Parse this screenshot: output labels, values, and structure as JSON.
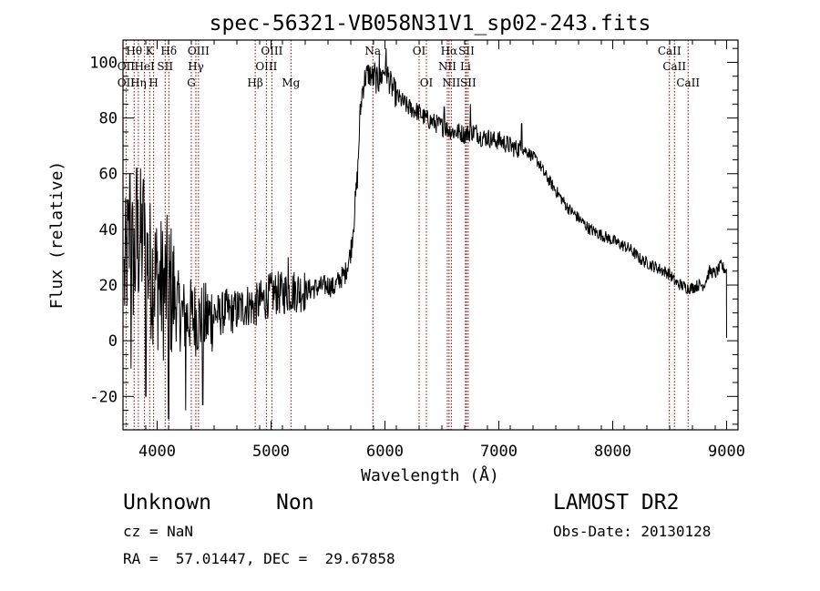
{
  "chart_data": {
    "type": "line",
    "title": "spec-56321-VB058N31V1_sp02-243.fits",
    "xlabel": "Wavelength (Å)",
    "ylabel": "Flux (relative)",
    "xlim": [
      3700,
      9100
    ],
    "ylim": [
      -32,
      108
    ],
    "x_ticks": [
      4000,
      5000,
      6000,
      7000,
      8000,
      9000
    ],
    "y_ticks": [
      -20,
      0,
      20,
      40,
      60,
      80,
      100
    ],
    "grid": false,
    "line_color": "#000000",
    "marker_line_color": "#8b0000",
    "spectrum_anchors": [
      [
        3700,
        18
      ],
      [
        3750,
        35
      ],
      [
        3800,
        28
      ],
      [
        3850,
        38
      ],
      [
        3900,
        30
      ],
      [
        3950,
        25
      ],
      [
        4000,
        22
      ],
      [
        4050,
        18
      ],
      [
        4100,
        20
      ],
      [
        4150,
        15
      ],
      [
        4200,
        10
      ],
      [
        4250,
        8
      ],
      [
        4300,
        9
      ],
      [
        4350,
        8
      ],
      [
        4400,
        7
      ],
      [
        4450,
        8
      ],
      [
        4500,
        10
      ],
      [
        4550,
        9
      ],
      [
        4600,
        11
      ],
      [
        4650,
        10
      ],
      [
        4700,
        11
      ],
      [
        4750,
        12
      ],
      [
        4800,
        13
      ],
      [
        4850,
        12
      ],
      [
        4900,
        14
      ],
      [
        4950,
        15
      ],
      [
        5000,
        17
      ],
      [
        5100,
        17
      ],
      [
        5200,
        18
      ],
      [
        5300,
        18
      ],
      [
        5400,
        19
      ],
      [
        5500,
        20
      ],
      [
        5550,
        19
      ],
      [
        5600,
        22
      ],
      [
        5650,
        24
      ],
      [
        5700,
        32
      ],
      [
        5730,
        45
      ],
      [
        5760,
        60
      ],
      [
        5780,
        80
      ],
      [
        5800,
        90
      ],
      [
        5830,
        95
      ],
      [
        5860,
        96
      ],
      [
        5900,
        94
      ],
      [
        5950,
        93
      ],
      [
        6000,
        98
      ],
      [
        6020,
        96
      ],
      [
        6050,
        92
      ],
      [
        6100,
        88
      ],
      [
        6150,
        86
      ],
      [
        6200,
        84
      ],
      [
        6250,
        83
      ],
      [
        6300,
        82
      ],
      [
        6350,
        80
      ],
      [
        6400,
        79
      ],
      [
        6450,
        78
      ],
      [
        6500,
        77
      ],
      [
        6550,
        76
      ],
      [
        6600,
        75
      ],
      [
        6650,
        75
      ],
      [
        6700,
        74
      ],
      [
        6750,
        75
      ],
      [
        6800,
        75
      ],
      [
        6850,
        73
      ],
      [
        6900,
        73
      ],
      [
        6950,
        72
      ],
      [
        7000,
        72
      ],
      [
        7050,
        71
      ],
      [
        7100,
        70
      ],
      [
        7150,
        69
      ],
      [
        7200,
        69
      ],
      [
        7250,
        68
      ],
      [
        7300,
        66
      ],
      [
        7350,
        64
      ],
      [
        7400,
        60
      ],
      [
        7450,
        57
      ],
      [
        7500,
        54
      ],
      [
        7550,
        51
      ],
      [
        7600,
        48
      ],
      [
        7650,
        46
      ],
      [
        7700,
        44
      ],
      [
        7750,
        42
      ],
      [
        7800,
        40
      ],
      [
        7850,
        39
      ],
      [
        7900,
        38
      ],
      [
        7950,
        37
      ],
      [
        8000,
        36
      ],
      [
        8050,
        35
      ],
      [
        8100,
        34
      ],
      [
        8150,
        33
      ],
      [
        8200,
        31
      ],
      [
        8250,
        29
      ],
      [
        8300,
        28
      ],
      [
        8350,
        27
      ],
      [
        8400,
        26
      ],
      [
        8450,
        25
      ],
      [
        8500,
        24
      ],
      [
        8550,
        21
      ],
      [
        8600,
        20
      ],
      [
        8650,
        19
      ],
      [
        8700,
        19
      ],
      [
        8750,
        20
      ],
      [
        8800,
        20
      ],
      [
        8850,
        25
      ],
      [
        8900,
        24
      ],
      [
        8950,
        27
      ],
      [
        9000,
        25
      ]
    ],
    "spikes": [
      [
        7200,
        78
      ],
      [
        6010,
        105
      ],
      [
        5950,
        103
      ],
      [
        5910,
        100
      ],
      [
        3760,
        60
      ],
      [
        3820,
        62
      ],
      [
        3880,
        58
      ],
      [
        3900,
        -20
      ],
      [
        4100,
        -28
      ],
      [
        4250,
        -25
      ],
      [
        4400,
        -23
      ],
      [
        3770,
        -10
      ],
      [
        5150,
        30
      ],
      [
        6520,
        84
      ],
      [
        6750,
        85
      ]
    ],
    "lines_top": [
      {
        "label": "Hθ",
        "x": 3798
      },
      {
        "label": "K",
        "x": 3934
      },
      {
        "label": "Hδ",
        "x": 4102
      },
      {
        "label": "OIII",
        "x": 4363
      },
      {
        "label": "OIII",
        "x": 5007
      },
      {
        "label": "Na",
        "x": 5894
      },
      {
        "label": "OI",
        "x": 6300
      },
      {
        "label": "Hα",
        "x": 6563
      },
      {
        "label": "SII",
        "x": 6716
      },
      {
        "label": "CaII",
        "x": 8498
      }
    ],
    "lines_mid": [
      {
        "label": "OII",
        "x": 3727
      },
      {
        "label": "HeI",
        "x": 3889
      },
      {
        "label": "SII",
        "x": 4070
      },
      {
        "label": "Hγ",
        "x": 4340
      },
      {
        "label": "OIII",
        "x": 4959
      },
      {
        "label": "NII",
        "x": 6548
      },
      {
        "label": "Li",
        "x": 6707
      },
      {
        "label": "CaII",
        "x": 8542
      }
    ],
    "lines_low": [
      {
        "label": "OII",
        "x": 3727
      },
      {
        "label": "Hη",
        "x": 3835
      },
      {
        "label": "H",
        "x": 3969
      },
      {
        "label": "G",
        "x": 4300
      },
      {
        "label": "Hβ",
        "x": 4861
      },
      {
        "label": "Mg",
        "x": 5175
      },
      {
        "label": "OI",
        "x": 6364
      },
      {
        "label": "NII",
        "x": 6583
      },
      {
        "label": "SII",
        "x": 6731
      },
      {
        "label": "CaII",
        "x": 8662
      }
    ]
  },
  "footer": {
    "object_class": "Unknown",
    "subclass": "Non",
    "survey": "LAMOST DR2",
    "redshift": "cz = NaN",
    "obs_date": "Obs-Date: 20130128",
    "coords": "RA =  57.01447, DEC =  29.67858"
  }
}
